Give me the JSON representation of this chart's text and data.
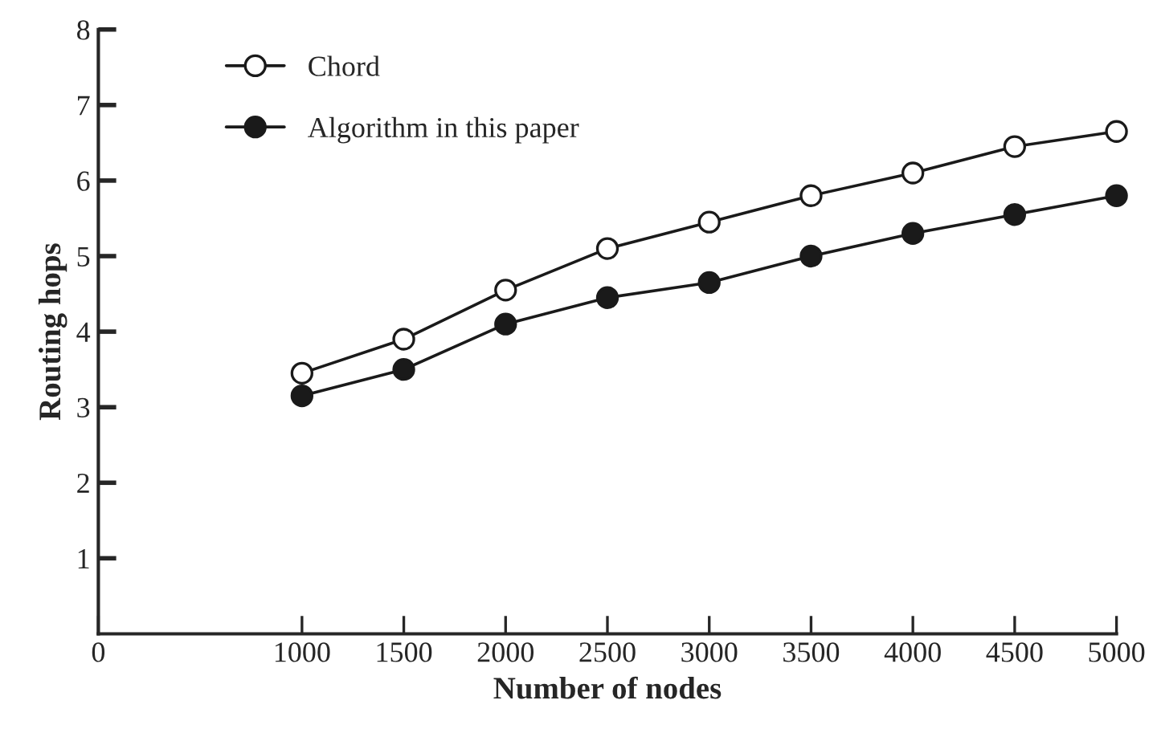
{
  "chart_data": {
    "type": "line",
    "xlabel": "Number of nodes",
    "ylabel": "Routing hops",
    "x": [
      1000,
      1500,
      2000,
      2500,
      3000,
      3500,
      4000,
      4500,
      5000
    ],
    "series": [
      {
        "name": "Chord",
        "color": "#1a1a1a",
        "marker": "circle",
        "values": [
          3.45,
          3.9,
          4.55,
          5.1,
          5.45,
          5.8,
          6.1,
          6.45,
          6.65
        ]
      },
      {
        "name": "Algorithm in this paper",
        "color": "#1a1a1a",
        "marker": "circle",
        "values": [
          3.15,
          3.5,
          4.1,
          4.45,
          4.65,
          5.0,
          5.3,
          5.55,
          5.8
        ]
      }
    ],
    "xlim": [
      0,
      5000
    ],
    "xticks": [
      0,
      1000,
      1500,
      2000,
      2500,
      3000,
      3500,
      4000,
      4500,
      5000
    ],
    "ylim": [
      0,
      8
    ],
    "yticks": [
      1,
      2,
      3,
      4,
      5,
      6,
      7,
      8
    ],
    "grid": false,
    "legend": "top left",
    "line_style": "solid"
  }
}
